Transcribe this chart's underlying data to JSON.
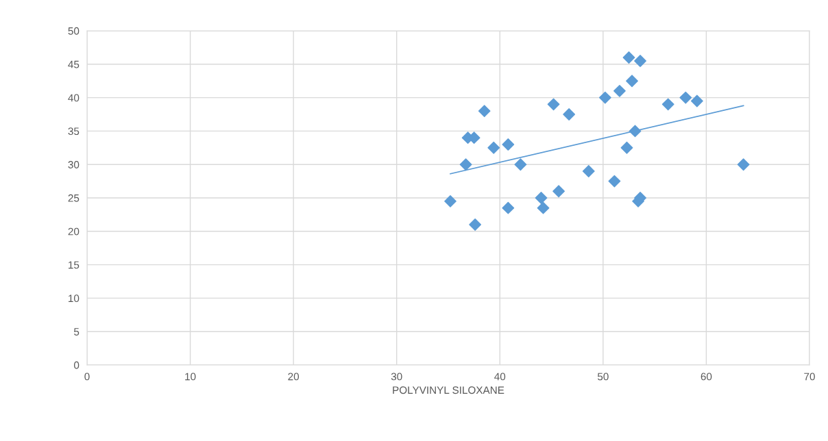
{
  "chart_data": {
    "type": "scatter",
    "xlabel": "POLYVINYL SILOXANE",
    "xlim": [
      0,
      70
    ],
    "xticks": [
      0,
      10,
      20,
      30,
      40,
      50,
      60,
      70
    ],
    "ylim": [
      0,
      50
    ],
    "yticks": [
      0,
      5,
      10,
      15,
      20,
      25,
      30,
      35,
      40,
      45,
      50
    ],
    "grid": true,
    "series": [
      {
        "marker": "diamond",
        "color": "#5b9bd5",
        "x": [
          35.2,
          36.7,
          36.9,
          37.5,
          37.6,
          38.5,
          39.4,
          40.8,
          40.8,
          42,
          44,
          44.2,
          45.2,
          45.7,
          46.7,
          48.6,
          50.2,
          51.1,
          51.6,
          52.3,
          52.5,
          52.8,
          53.1,
          53.4,
          53.6,
          53.6,
          56.3,
          58,
          59.1,
          63.6
        ],
        "values": [
          24.5,
          30,
          34,
          34,
          21,
          38,
          32.5,
          33,
          23.5,
          30,
          25,
          23.5,
          39,
          26,
          37.5,
          29,
          40,
          27.5,
          41,
          32.5,
          46,
          42.5,
          35,
          24.5,
          25,
          45.5,
          39,
          40,
          39.5,
          30
        ]
      },
      {
        "type": "line",
        "marker": "none",
        "color": "#5b9bd5",
        "x": [
          35.2,
          63.6
        ],
        "values": [
          28.6,
          38.8
        ]
      }
    ]
  }
}
